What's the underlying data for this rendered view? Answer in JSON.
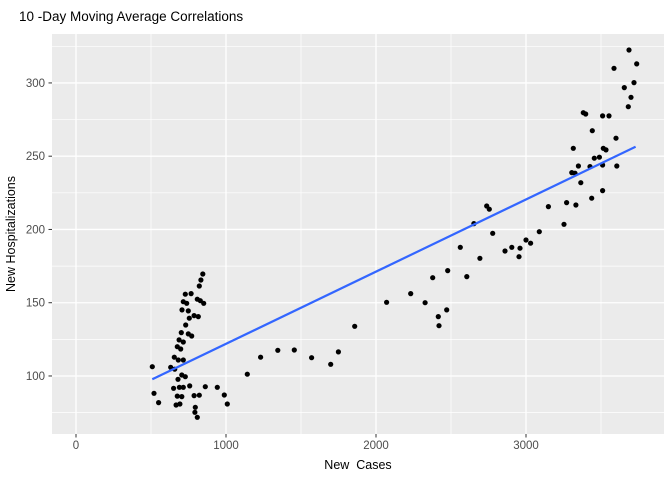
{
  "chart_data": {
    "type": "scatter",
    "title": "10 -Day Moving Average Correlations",
    "xlabel": "New  Cases",
    "ylabel": "New Hospitalizations",
    "xlim": [
      -160,
      3920
    ],
    "ylim": [
      60.4,
      333.4
    ],
    "x_ticks": [
      0,
      1000,
      2000,
      3000
    ],
    "y_ticks": [
      100,
      150,
      200,
      250,
      300
    ],
    "x_minor_ticks": [
      500,
      1500,
      2500,
      3500
    ],
    "y_minor_ticks": [
      75,
      125,
      175,
      225,
      275,
      325
    ],
    "grid": true,
    "legend_position": "none",
    "colors": {
      "panel_bg": "#EBEBEB",
      "grid": "#FFFFFF",
      "point": "#000000",
      "trend": "#3366FF",
      "tick_label": "#4D4D4D",
      "tick_mark": "#333333",
      "title": "#000000"
    },
    "trend_line": {
      "x": [
        509,
        3731
      ],
      "y": [
        97.7,
        256.5
      ]
    },
    "points": [
      [
        845,
        169.6
      ],
      [
        833,
        165.5
      ],
      [
        822,
        161.4
      ],
      [
        729,
        155.8
      ],
      [
        767,
        156.2
      ],
      [
        809,
        152.4
      ],
      [
        829,
        151.4
      ],
      [
        851,
        149.6
      ],
      [
        715,
        150.7
      ],
      [
        738,
        149.6
      ],
      [
        707,
        145.1
      ],
      [
        749,
        144.4
      ],
      [
        787,
        141.2
      ],
      [
        815,
        140.5
      ],
      [
        755,
        139.4
      ],
      [
        731,
        134.8
      ],
      [
        702,
        129.6
      ],
      [
        749,
        128.7
      ],
      [
        771,
        127.3
      ],
      [
        687,
        124.6
      ],
      [
        715,
        123.2
      ],
      [
        675,
        120.0
      ],
      [
        698,
        118.4
      ],
      [
        655,
        112.8
      ],
      [
        682,
        110.9
      ],
      [
        715,
        110.9
      ],
      [
        509,
        106.3
      ],
      [
        631,
        105.9
      ],
      [
        658,
        104.6
      ],
      [
        705,
        100.7
      ],
      [
        729,
        99.5
      ],
      [
        680,
        97.7
      ],
      [
        651,
        91.6
      ],
      [
        689,
        92.3
      ],
      [
        715,
        92.3
      ],
      [
        758,
        93.2
      ],
      [
        862,
        92.7
      ],
      [
        520,
        88.2
      ],
      [
        675,
        86.3
      ],
      [
        705,
        85.9
      ],
      [
        787,
        86.6
      ],
      [
        822,
        86.9
      ],
      [
        551,
        81.8
      ],
      [
        667,
        80.2
      ],
      [
        693,
        80.9
      ],
      [
        795,
        78.6
      ],
      [
        989,
        87.0
      ],
      [
        1009,
        80.9
      ],
      [
        942,
        92.3
      ],
      [
        793,
        75.2
      ],
      [
        809,
        71.8
      ],
      [
        1142,
        101.2
      ],
      [
        1231,
        112.8
      ],
      [
        1345,
        117.5
      ],
      [
        1455,
        117.7
      ],
      [
        1571,
        112.5
      ],
      [
        1698,
        108.0
      ],
      [
        1749,
        116.4
      ],
      [
        1858,
        133.9
      ],
      [
        2071,
        150.3
      ],
      [
        2231,
        156.2
      ],
      [
        2738,
        216.0
      ],
      [
        2755,
        213.8
      ],
      [
        2653,
        204.0
      ],
      [
        2778,
        197.4
      ],
      [
        2562,
        187.8
      ],
      [
        2860,
        185.3
      ],
      [
        2905,
        187.8
      ],
      [
        2960,
        187.2
      ],
      [
        3000,
        192.8
      ],
      [
        3031,
        190.6
      ],
      [
        2953,
        181.4
      ],
      [
        3089,
        198.5
      ],
      [
        2693,
        180.3
      ],
      [
        2478,
        171.9
      ],
      [
        2605,
        167.8
      ],
      [
        2378,
        167.1
      ],
      [
        2327,
        150.0
      ],
      [
        2471,
        145.1
      ],
      [
        2415,
        140.5
      ],
      [
        2420,
        134.3
      ],
      [
        3687,
        322.5
      ],
      [
        3738,
        313.0
      ],
      [
        3587,
        310.0
      ],
      [
        3720,
        300.2
      ],
      [
        3655,
        296.8
      ],
      [
        3700,
        290.2
      ],
      [
        3682,
        283.8
      ],
      [
        3382,
        279.7
      ],
      [
        3398,
        278.8
      ],
      [
        3511,
        277.5
      ],
      [
        3553,
        277.5
      ],
      [
        3442,
        267.4
      ],
      [
        3600,
        262.3
      ],
      [
        3315,
        255.4
      ],
      [
        3515,
        255.4
      ],
      [
        3533,
        254.3
      ],
      [
        3349,
        243.3
      ],
      [
        3427,
        242.9
      ],
      [
        3455,
        248.6
      ],
      [
        3489,
        249.3
      ],
      [
        3511,
        244.0
      ],
      [
        3605,
        243.3
      ],
      [
        3305,
        238.8
      ],
      [
        3327,
        238.4
      ],
      [
        3365,
        231.9
      ],
      [
        3511,
        226.5
      ],
      [
        3438,
        221.3
      ],
      [
        3271,
        218.3
      ],
      [
        3333,
        216.7
      ],
      [
        3149,
        215.6
      ],
      [
        3253,
        203.5
      ]
    ]
  }
}
